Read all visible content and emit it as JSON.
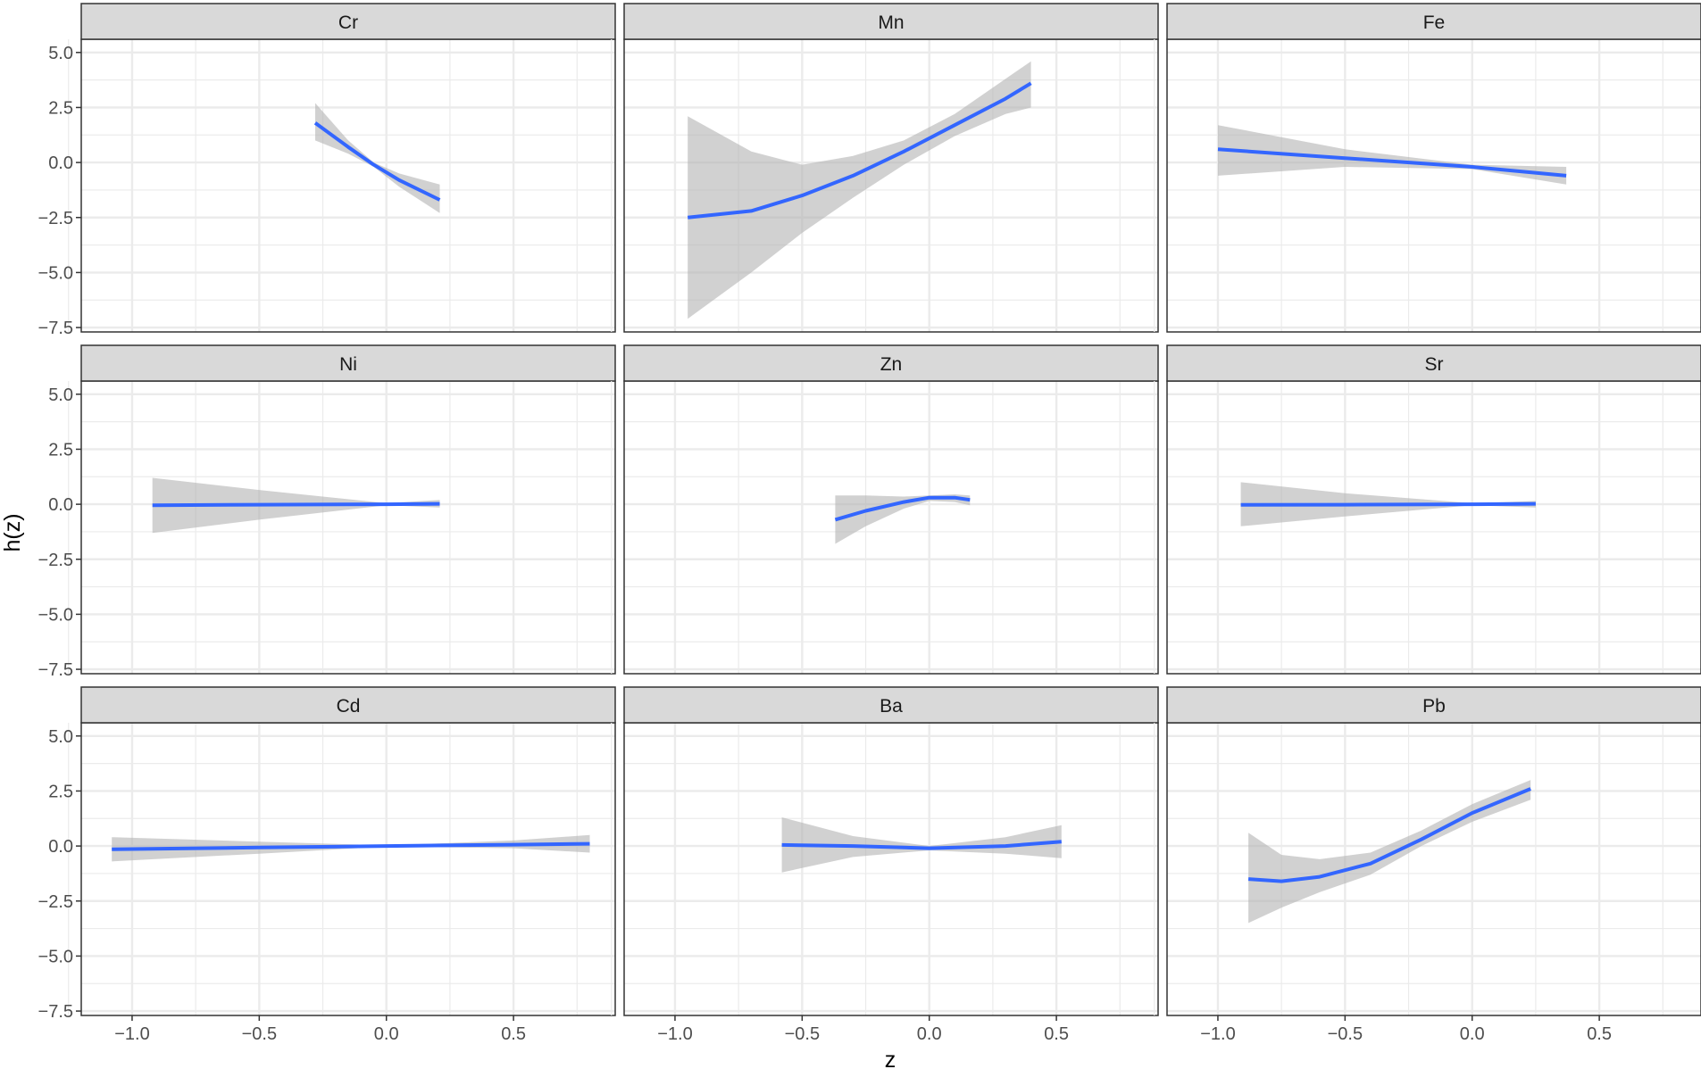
{
  "chart_data": {
    "type": "line",
    "title": "",
    "xlabel": "z",
    "ylabel": "h(z)",
    "xlim": [
      -1.2,
      0.9
    ],
    "ylim": [
      -7.7,
      5.6
    ],
    "x_ticks": [
      -1.0,
      -0.5,
      0.0,
      0.5
    ],
    "x_tick_labels": [
      "−1.0",
      "−0.5",
      "0.0",
      "0.5"
    ],
    "y_ticks": [
      5.0,
      2.5,
      0.0,
      -2.5,
      -5.0,
      -7.5
    ],
    "y_tick_labels": [
      "5.0",
      "2.5",
      "0.0",
      "−2.5",
      "−5.0",
      "−7.5"
    ],
    "grid": true,
    "layout": "3x3 facets, shared axes",
    "colors": {
      "line": "#3366ff",
      "band": "#b3b3b3",
      "strip": "#d9d9d9",
      "grid": "#ebebeb",
      "border": "#333333"
    },
    "panels": [
      {
        "label": "Cr",
        "x": [
          -0.28,
          -0.15,
          -0.05,
          0.05,
          0.21
        ],
        "y": [
          1.8,
          0.7,
          -0.1,
          -0.8,
          -1.7
        ],
        "lower": [
          1.0,
          0.4,
          -0.2,
          -1.1,
          -2.3
        ],
        "upper": [
          2.7,
          1.0,
          0.0,
          -0.5,
          -1.0
        ]
      },
      {
        "label": "Mn",
        "x": [
          -0.95,
          -0.7,
          -0.5,
          -0.3,
          -0.1,
          0.1,
          0.3,
          0.4
        ],
        "y": [
          -2.5,
          -2.2,
          -1.5,
          -0.6,
          0.5,
          1.7,
          2.9,
          3.6
        ],
        "lower": [
          -7.1,
          -5.0,
          -3.2,
          -1.6,
          -0.1,
          1.2,
          2.2,
          2.5
        ],
        "upper": [
          2.1,
          0.5,
          -0.1,
          0.3,
          1.0,
          2.2,
          3.8,
          4.6
        ]
      },
      {
        "label": "Fe",
        "x": [
          -1.0,
          -0.5,
          0.0,
          0.37
        ],
        "y": [
          0.6,
          0.2,
          -0.2,
          -0.6
        ],
        "lower": [
          -0.6,
          -0.2,
          -0.3,
          -1.0
        ],
        "upper": [
          1.7,
          0.6,
          -0.1,
          -0.2
        ]
      },
      {
        "label": "Ni",
        "x": [
          -0.92,
          -0.5,
          0.0,
          0.21
        ],
        "y": [
          -0.05,
          -0.02,
          0.0,
          0.02
        ],
        "lower": [
          -1.3,
          -0.7,
          -0.05,
          -0.15
        ],
        "upper": [
          1.2,
          0.65,
          0.05,
          0.2
        ]
      },
      {
        "label": "Zn",
        "x": [
          -0.37,
          -0.25,
          -0.1,
          0.0,
          0.1,
          0.16
        ],
        "y": [
          -0.7,
          -0.3,
          0.1,
          0.3,
          0.3,
          0.2
        ],
        "lower": [
          -1.8,
          -1.0,
          -0.2,
          0.15,
          0.1,
          -0.05
        ],
        "upper": [
          0.4,
          0.4,
          0.35,
          0.4,
          0.45,
          0.4
        ]
      },
      {
        "label": "Sr",
        "x": [
          -0.91,
          -0.5,
          0.0,
          0.25
        ],
        "y": [
          -0.03,
          -0.02,
          0.0,
          0.02
        ],
        "lower": [
          -1.0,
          -0.55,
          -0.05,
          -0.15
        ],
        "upper": [
          1.0,
          0.5,
          0.05,
          0.15
        ]
      },
      {
        "label": "Cd",
        "x": [
          -1.08,
          -0.5,
          0.0,
          0.5,
          0.8
        ],
        "y": [
          -0.15,
          -0.07,
          0.0,
          0.06,
          0.1
        ],
        "lower": [
          -0.7,
          -0.35,
          -0.03,
          -0.1,
          -0.3
        ],
        "upper": [
          0.4,
          0.2,
          0.03,
          0.25,
          0.5
        ]
      },
      {
        "label": "Ba",
        "x": [
          -0.58,
          -0.3,
          0.0,
          0.3,
          0.52
        ],
        "y": [
          0.05,
          0.0,
          -0.1,
          0.0,
          0.2
        ],
        "lower": [
          -1.2,
          -0.5,
          -0.2,
          -0.35,
          -0.55
        ],
        "upper": [
          1.3,
          0.45,
          0.0,
          0.4,
          0.95
        ]
      },
      {
        "label": "Pb",
        "x": [
          -0.88,
          -0.75,
          -0.6,
          -0.4,
          -0.2,
          0.0,
          0.23
        ],
        "y": [
          -1.5,
          -1.6,
          -1.4,
          -0.8,
          0.3,
          1.5,
          2.6
        ],
        "lower": [
          -3.5,
          -2.8,
          -2.1,
          -1.3,
          0.0,
          1.1,
          2.1
        ],
        "upper": [
          0.6,
          -0.4,
          -0.6,
          -0.3,
          0.7,
          1.9,
          3.0
        ]
      }
    ]
  }
}
